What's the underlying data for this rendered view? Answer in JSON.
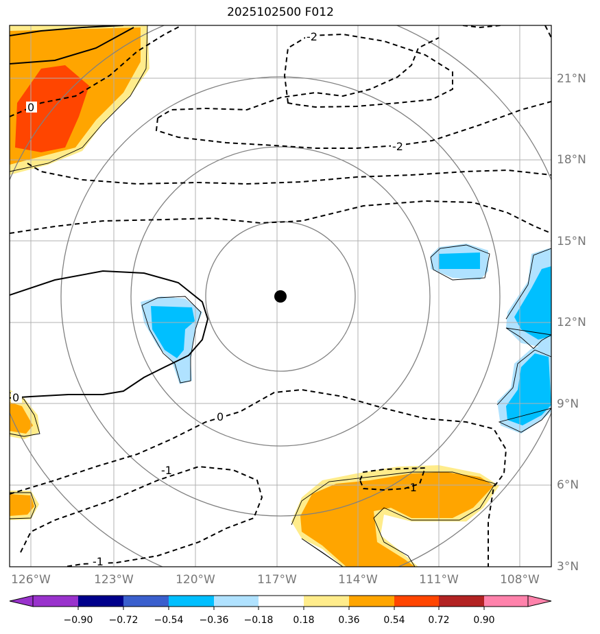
{
  "title": "2025102500 F012",
  "lat_labels": [
    "21°N",
    "18°N",
    "15°N",
    "12°N",
    "9°N",
    "6°N",
    "3°N"
  ],
  "lon_labels": [
    "126°W",
    "123°W",
    "120°W",
    "117°W",
    "114°W",
    "111°W",
    "108°W"
  ],
  "colorbar": {
    "ticks": [
      "−0.90",
      "−0.72",
      "−0.54",
      "−0.36",
      "−0.18",
      "0.18",
      "0.36",
      "0.54",
      "0.72",
      "0.90"
    ],
    "colors": [
      "#9932cc",
      "#00008b",
      "#3a5fcd",
      "#00bfff",
      "#b0e2ff",
      "#ffffff",
      "#ffec8b",
      "#ffa500",
      "#ff4500",
      "#b22222",
      "#ff82ab"
    ]
  },
  "contour_labels": [
    "-2",
    "-2",
    "0",
    "0",
    "0",
    "-1",
    "-1",
    "-1"
  ],
  "center_marker": "storm-center"
}
